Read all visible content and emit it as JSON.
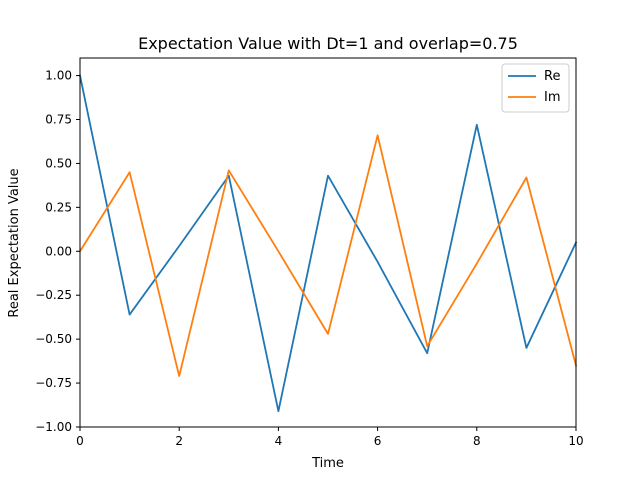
{
  "chart_data": {
    "type": "line",
    "title": "Expectation Value with Dt=1 and overlap=0.75",
    "xlabel": "Time",
    "ylabel": "Real Expectation Value",
    "xlim": [
      0,
      10
    ],
    "ylim": [
      -1.0,
      1.1
    ],
    "xticks": [
      0,
      2,
      4,
      6,
      8,
      10
    ],
    "xtick_labels": [
      "0",
      "2",
      "4",
      "6",
      "8",
      "10"
    ],
    "yticks": [
      -1.0,
      -0.75,
      -0.5,
      -0.25,
      0.0,
      0.25,
      0.5,
      0.75,
      1.0
    ],
    "ytick_labels": [
      "−1.00",
      "−0.75",
      "−0.50",
      "−0.25",
      "0.00",
      "0.25",
      "0.50",
      "0.75",
      "1.00"
    ],
    "grid": false,
    "legend_position": "top-right",
    "x": [
      0,
      1,
      2,
      3,
      4,
      5,
      6,
      7,
      8,
      9,
      10
    ],
    "series": [
      {
        "name": "Re",
        "color": "#1f77b4",
        "values": [
          1.0,
          -0.36,
          0.03,
          0.43,
          -0.91,
          0.43,
          -0.06,
          -0.58,
          0.72,
          -0.55,
          0.05
        ]
      },
      {
        "name": "Im",
        "color": "#ff7f0e",
        "values": [
          0.0,
          0.45,
          -0.71,
          0.46,
          0.0,
          -0.47,
          0.66,
          -0.54,
          -0.07,
          0.42,
          -0.65
        ]
      }
    ]
  }
}
